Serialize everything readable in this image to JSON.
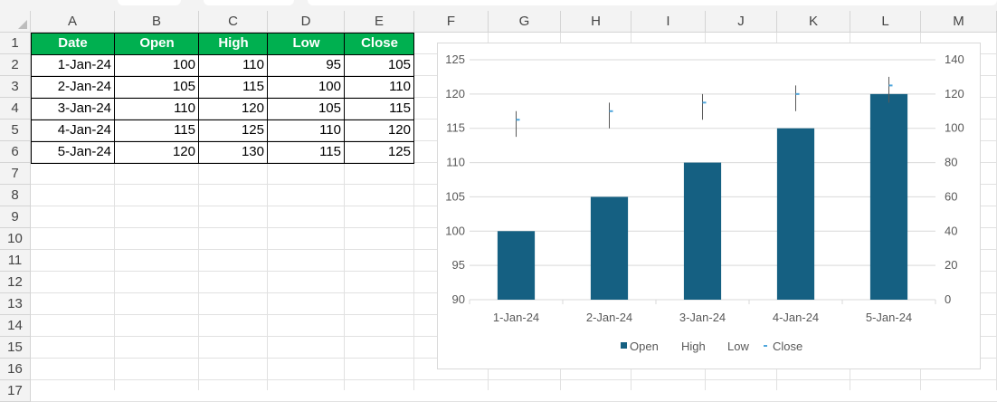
{
  "sheet": {
    "columns": [
      "A",
      "B",
      "C",
      "D",
      "E",
      "F",
      "G",
      "H",
      "I",
      "J",
      "K",
      "L",
      "M"
    ],
    "rows": [
      "1",
      "2",
      "3",
      "4",
      "5",
      "6",
      "7",
      "8",
      "9",
      "10",
      "11",
      "12",
      "13",
      "14",
      "15",
      "16",
      "17"
    ],
    "table": {
      "headers": [
        "Date",
        "Open",
        "High",
        "Low",
        "Close"
      ],
      "rows": [
        [
          "1-Jan-24",
          "100",
          "110",
          "95",
          "105"
        ],
        [
          "2-Jan-24",
          "105",
          "115",
          "100",
          "110"
        ],
        [
          "3-Jan-24",
          "110",
          "120",
          "105",
          "115"
        ],
        [
          "4-Jan-24",
          "115",
          "125",
          "110",
          "120"
        ],
        [
          "5-Jan-24",
          "120",
          "130",
          "115",
          "125"
        ]
      ]
    }
  },
  "colors": {
    "header_fill": "#00b050",
    "bar": "#156082",
    "marker": "#4ea6dc"
  },
  "chart_data": {
    "type": "bar",
    "categories": [
      "1-Jan-24",
      "2-Jan-24",
      "3-Jan-24",
      "4-Jan-24",
      "5-Jan-24"
    ],
    "series": [
      {
        "name": "Open",
        "kind": "bar",
        "axis": "primary",
        "values": [
          100,
          105,
          110,
          115,
          120
        ]
      },
      {
        "name": "High",
        "kind": "hiloline",
        "axis": "secondary",
        "values": [
          110,
          115,
          120,
          125,
          130
        ]
      },
      {
        "name": "Low",
        "kind": "hiloline",
        "axis": "secondary",
        "values": [
          95,
          100,
          105,
          110,
          115
        ]
      },
      {
        "name": "Close",
        "kind": "marker",
        "axis": "secondary",
        "values": [
          105,
          110,
          115,
          120,
          125
        ]
      }
    ],
    "y_primary": {
      "min": 90,
      "max": 125,
      "step": 5,
      "ticks": [
        "90",
        "95",
        "100",
        "105",
        "110",
        "115",
        "120",
        "125"
      ]
    },
    "y_secondary": {
      "min": 0,
      "max": 140,
      "step": 20,
      "ticks": [
        "0",
        "20",
        "40",
        "60",
        "80",
        "100",
        "120",
        "140"
      ]
    },
    "legend": {
      "position": "bottom",
      "entries": [
        "Open",
        "High",
        "Low",
        "Close"
      ]
    },
    "grid": true
  }
}
